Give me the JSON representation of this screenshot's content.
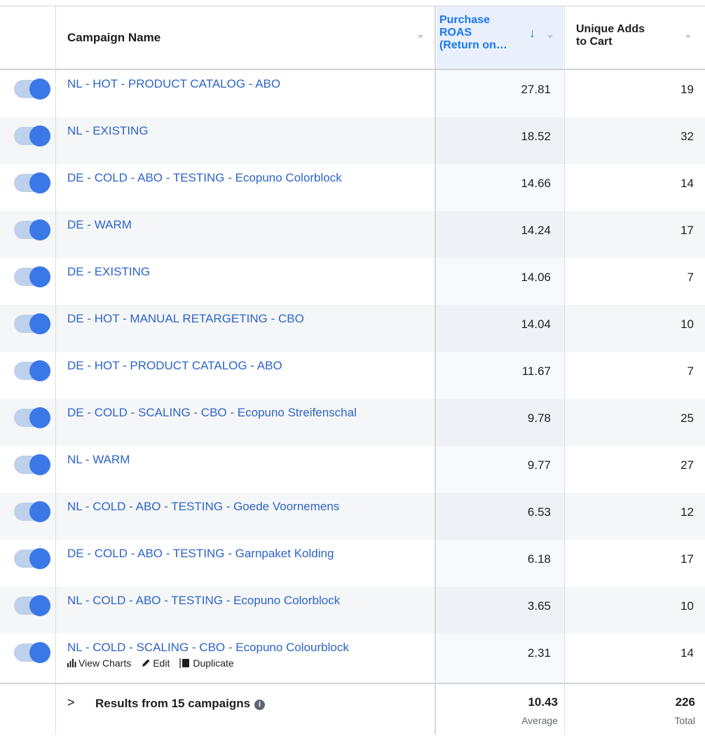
{
  "header": {
    "campaign_name": "Campaign Name",
    "roas_label_lines": [
      "Purchase",
      "ROAS",
      "(Return on…"
    ],
    "adds_label_lines": [
      "Unique Adds",
      "to Cart"
    ]
  },
  "rows": [
    {
      "name": "NL - HOT - PRODUCT CATALOG - ABO",
      "roas": "27.81",
      "adds": "19"
    },
    {
      "name": "NL - EXISTING",
      "roas": "18.52",
      "adds": "32"
    },
    {
      "name": "DE - COLD - ABO - TESTING - Ecopuno Colorblock",
      "roas": "14.66",
      "adds": "14"
    },
    {
      "name": "DE - WARM",
      "roas": "14.24",
      "adds": "17"
    },
    {
      "name": "DE - EXISTING",
      "roas": "14.06",
      "adds": "7"
    },
    {
      "name": "DE - HOT - MANUAL RETARGETING - CBO",
      "roas": "14.04",
      "adds": "10"
    },
    {
      "name": "DE - HOT - PRODUCT CATALOG - ABO",
      "roas": "11.67",
      "adds": "7"
    },
    {
      "name": "DE - COLD - SCALING - CBO - Ecopuno Streifenschal",
      "roas": "9.78",
      "adds": "25"
    },
    {
      "name": "NL - WARM",
      "roas": "9.77",
      "adds": "27"
    },
    {
      "name": "NL - COLD - ABO - TESTING - Goede Voornemens",
      "roas": "6.53",
      "adds": "12"
    },
    {
      "name": "DE - COLD - ABO - TESTING - Garnpaket Kolding",
      "roas": "6.18",
      "adds": "17"
    },
    {
      "name": "NL - COLD - ABO - TESTING - Ecopuno Colorblock",
      "roas": "3.65",
      "adds": "10"
    },
    {
      "name": "NL - COLD - SCALING - CBO - Ecopuno Colourblock",
      "roas": "2.31",
      "adds": "14"
    }
  ],
  "row_actions": {
    "view_charts": "View Charts",
    "edit": "Edit",
    "duplicate": "Duplicate"
  },
  "footer": {
    "results": "Results from 15 campaigns",
    "roas_value": "10.43",
    "roas_sub": "Average",
    "adds_value": "226",
    "adds_sub": "Total"
  },
  "colors": {
    "link": "#2d64c8",
    "accent": "#1877f2",
    "toggle_knob": "#3b78e7",
    "toggle_track": "#bdd0ec"
  },
  "icons": {
    "sort": "arrow-down-icon",
    "dropdown": "caret-down-icon",
    "chart": "bar-chart-icon",
    "edit": "pencil-icon",
    "duplicate": "duplicate-icon",
    "info": "info-icon",
    "expand": "chevron-right-icon"
  }
}
